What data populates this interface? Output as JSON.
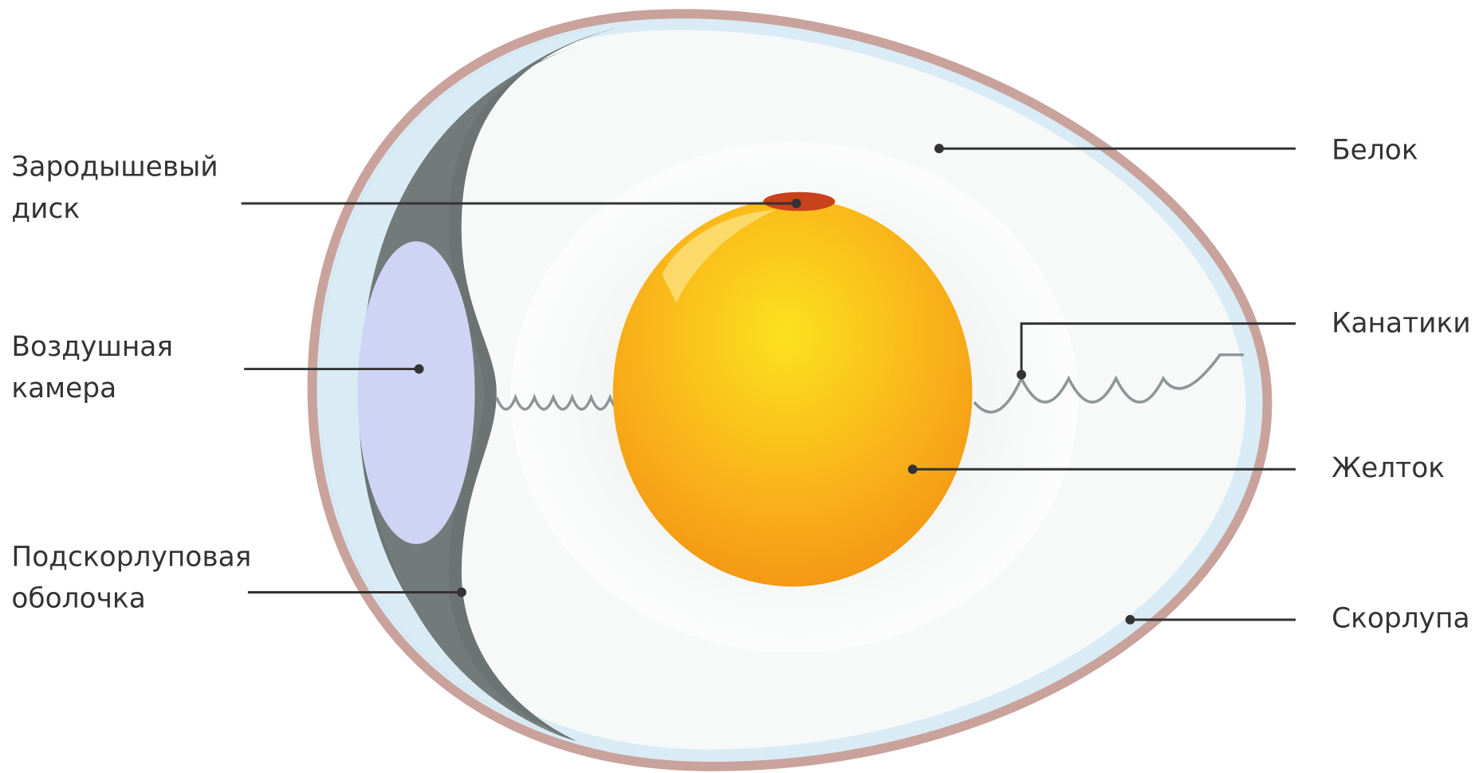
{
  "labels": [
    {
      "id": "germinal-disc",
      "lines": [
        "Зародышевый",
        "диск"
      ]
    },
    {
      "id": "air-cell",
      "lines": [
        "Воздушная",
        "камера"
      ]
    },
    {
      "id": "shell-membrane",
      "lines": [
        "Подскорлуповая",
        "оболочка"
      ]
    },
    {
      "id": "albumen",
      "lines": [
        "Белок"
      ]
    },
    {
      "id": "chalazae",
      "lines": [
        "Канатики"
      ]
    },
    {
      "id": "yolk",
      "lines": [
        "Желток"
      ]
    },
    {
      "id": "shell",
      "lines": [
        "Скорлупа"
      ]
    }
  ]
}
